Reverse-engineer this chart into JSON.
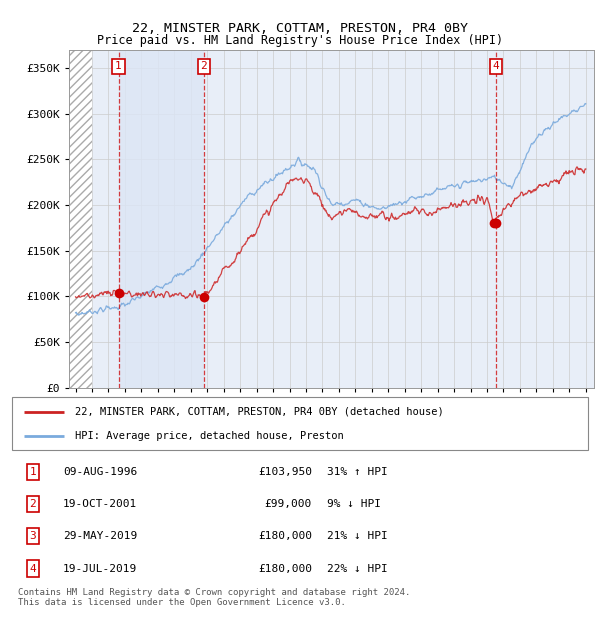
{
  "title1": "22, MINSTER PARK, COTTAM, PRESTON, PR4 0BY",
  "title2": "Price paid vs. HM Land Registry's House Price Index (HPI)",
  "ylim": [
    0,
    370000
  ],
  "yticks": [
    0,
    50000,
    100000,
    150000,
    200000,
    250000,
    300000,
    350000
  ],
  "ytick_labels": [
    "£0",
    "£50K",
    "£100K",
    "£150K",
    "£200K",
    "£250K",
    "£300K",
    "£350K"
  ],
  "xlim_start": 1993.6,
  "xlim_end": 2025.5,
  "legend_line1": "22, MINSTER PARK, COTTAM, PRESTON, PR4 0BY (detached house)",
  "legend_line2": "HPI: Average price, detached house, Preston",
  "transactions": [
    {
      "num": 1,
      "date_dec": 1996.61,
      "price": 103950
    },
    {
      "num": 2,
      "date_dec": 2001.8,
      "price": 99000
    },
    {
      "num": 3,
      "date_dec": 2019.41,
      "price": 180000
    },
    {
      "num": 4,
      "date_dec": 2019.54,
      "price": 180000
    }
  ],
  "table_rows": [
    {
      "num": "1",
      "date": "09-AUG-1996",
      "price": "£103,950",
      "hpi": "31% ↑ HPI"
    },
    {
      "num": "2",
      "date": "19-OCT-2001",
      "price": "£99,000",
      "hpi": "9% ↓ HPI"
    },
    {
      "num": "3",
      "date": "29-MAY-2019",
      "price": "£180,000",
      "hpi": "21% ↓ HPI"
    },
    {
      "num": "4",
      "date": "19-JUL-2019",
      "price": "£180,000",
      "hpi": "22% ↓ HPI"
    }
  ],
  "footer": "Contains HM Land Registry data © Crown copyright and database right 2024.\nThis data is licensed under the Open Government Licence v3.0.",
  "hatch_end": 1995.0,
  "shade_start": 1996.61,
  "shade_end": 2001.8,
  "red_line_color": "#cc2222",
  "blue_line_color": "#7aaadd",
  "grid_color": "#cccccc",
  "bg_color": "#e8eef8",
  "hatch_color": "#aaaaaa",
  "shade_color": "#dce6f5"
}
